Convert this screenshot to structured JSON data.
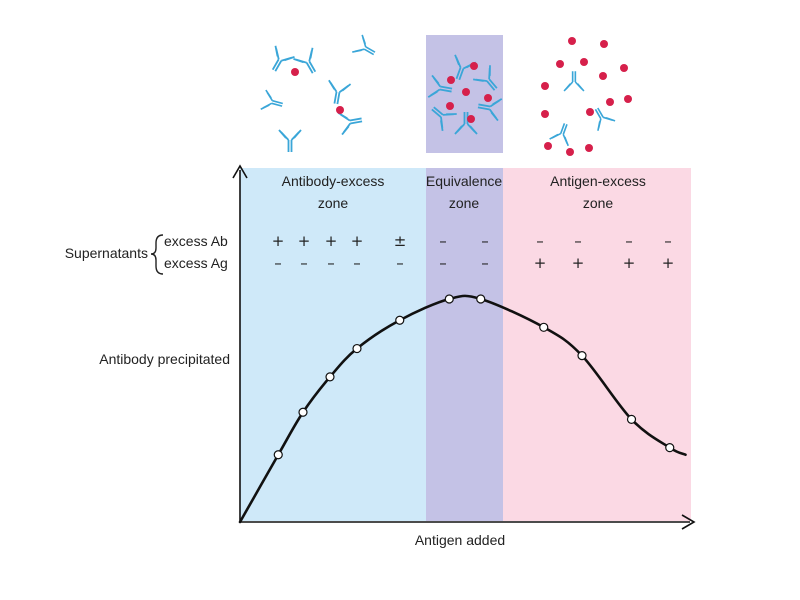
{
  "colors": {
    "antibody_zone": "#cfe9f9",
    "equivalence_zone": "#c4c2e6",
    "antigen_zone": "#fbd9e4",
    "antibody_stroke": "#3aa6d8",
    "antigen_dot": "#d6204b",
    "curve": "#111111"
  },
  "zones": [
    {
      "line1": "Antibody-excess",
      "line2": "zone"
    },
    {
      "line1": "Equivalence",
      "line2": "zone"
    },
    {
      "line1": "Antigen-excess",
      "line2": "zone"
    }
  ],
  "supernatants": {
    "label": "Supernatants",
    "row1_label": "excess Ab",
    "row2_label": "excess Ag",
    "row1_signs": [
      "+",
      "+",
      "+",
      "+",
      "±",
      "–",
      "–",
      "–",
      "–",
      "–",
      "–"
    ],
    "row2_signs": [
      "–",
      "–",
      "–",
      "–",
      "–",
      "–",
      "–",
      "+",
      "+",
      "+",
      "+"
    ]
  },
  "axes": {
    "ylabel": "Antibody precipitated",
    "xlabel": "Antigen added"
  },
  "chart_data": {
    "type": "line",
    "xlabel": "Antigen added",
    "ylabel": "Antibody precipitated",
    "x": [
      0.0,
      0.085,
      0.14,
      0.2,
      0.26,
      0.355,
      0.465,
      0.535,
      0.675,
      0.76,
      0.87,
      0.955,
      0.99
    ],
    "y": [
      0.0,
      0.19,
      0.31,
      0.41,
      0.49,
      0.57,
      0.63,
      0.63,
      0.55,
      0.47,
      0.29,
      0.21,
      0.19
    ],
    "markers": [
      1,
      2,
      3,
      4,
      5,
      6,
      7,
      8,
      9,
      10,
      11
    ],
    "ylim": [
      0,
      1
    ],
    "xlim": [
      0,
      1
    ],
    "grid": false
  }
}
